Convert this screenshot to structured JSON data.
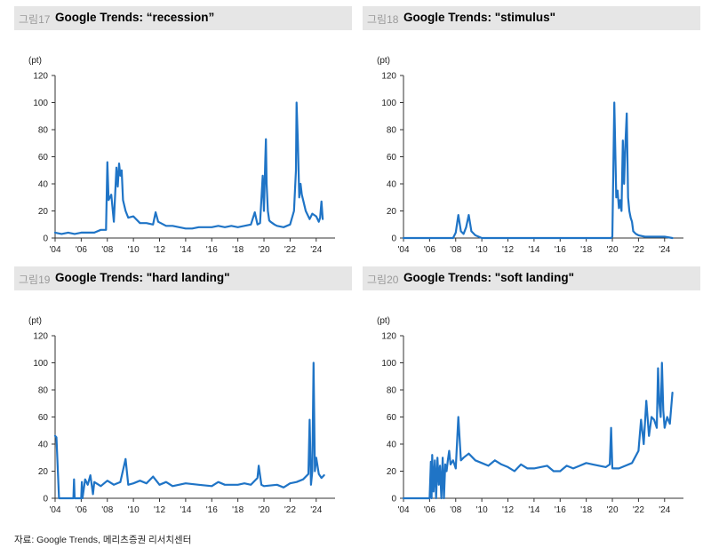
{
  "source": "자료: Google Trends, 메리츠증권 리서치센터",
  "chart_data": [
    {
      "type": "line",
      "fig_label": "그림17",
      "title": "Google Trends: “recession”",
      "ylabel": "(pt)",
      "ylim": [
        0,
        120
      ],
      "yticks": [
        "0",
        "20",
        "40",
        "60",
        "80",
        "100",
        "120"
      ],
      "xlim": [
        2004,
        2024.9
      ],
      "xticks": [
        "'04",
        "'06",
        "'08",
        "'10",
        "'12",
        "'14",
        "'16",
        "'18",
        "'20",
        "'22",
        "'24"
      ],
      "color": "#1f74c6",
      "x": [
        2004.0,
        2004.5,
        2005.0,
        2005.5,
        2006.0,
        2006.5,
        2007.0,
        2007.5,
        2007.9,
        2008.0,
        2008.1,
        2008.3,
        2008.5,
        2008.7,
        2008.8,
        2008.9,
        2009.0,
        2009.1,
        2009.2,
        2009.4,
        2009.6,
        2010.0,
        2010.5,
        2011.0,
        2011.5,
        2011.7,
        2011.9,
        2012.5,
        2013.0,
        2013.5,
        2014.0,
        2014.5,
        2015.0,
        2015.5,
        2016.0,
        2016.5,
        2017.0,
        2017.5,
        2018.0,
        2018.5,
        2019.0,
        2019.3,
        2019.5,
        2019.7,
        2019.9,
        2020.0,
        2020.1,
        2020.15,
        2020.2,
        2020.3,
        2020.4,
        2020.5,
        2020.8,
        2021.0,
        2021.5,
        2022.0,
        2022.3,
        2022.45,
        2022.5,
        2022.6,
        2022.7,
        2022.8,
        2022.9,
        2023.0,
        2023.2,
        2023.5,
        2023.7,
        2024.0,
        2024.2,
        2024.3,
        2024.4,
        2024.5
      ],
      "values": [
        4,
        3,
        4,
        3,
        4,
        4,
        4,
        6,
        6,
        56,
        28,
        32,
        12,
        52,
        38,
        55,
        46,
        50,
        28,
        20,
        15,
        16,
        11,
        11,
        10,
        19,
        12,
        9,
        9,
        8,
        7,
        7,
        8,
        8,
        8,
        9,
        8,
        9,
        8,
        9,
        10,
        19,
        10,
        11,
        46,
        20,
        58,
        73,
        40,
        20,
        13,
        12,
        10,
        9,
        8,
        10,
        20,
        50,
        100,
        70,
        30,
        40,
        32,
        28,
        20,
        14,
        18,
        16,
        12,
        15,
        27,
        14
      ]
    },
    {
      "type": "line",
      "fig_label": "그림18",
      "title": "Google Trends: \"stimulus\"",
      "ylabel": "(pt)",
      "ylim": [
        0,
        120
      ],
      "yticks": [
        "0",
        "20",
        "40",
        "60",
        "80",
        "100",
        "120"
      ],
      "xlim": [
        2004,
        2024.9
      ],
      "xticks": [
        "'04",
        "'06",
        "'08",
        "'10",
        "'12",
        "'14",
        "'16",
        "'18",
        "'20",
        "'22",
        "'24"
      ],
      "color": "#1f74c6",
      "x": [
        2004.0,
        2007.8,
        2008.0,
        2008.2,
        2008.4,
        2008.6,
        2008.8,
        2009.0,
        2009.2,
        2009.5,
        2010.0,
        2012.0,
        2014.0,
        2016.0,
        2018.0,
        2019.9,
        2020.0,
        2020.15,
        2020.3,
        2020.4,
        2020.5,
        2020.6,
        2020.7,
        2020.8,
        2020.9,
        2021.0,
        2021.1,
        2021.2,
        2021.3,
        2021.4,
        2021.5,
        2021.6,
        2021.8,
        2022.0,
        2022.5,
        2023.0,
        2024.0,
        2024.6
      ],
      "values": [
        0,
        0,
        4,
        17,
        5,
        3,
        8,
        17,
        5,
        2,
        0,
        0,
        0,
        0,
        0,
        0,
        1,
        100,
        30,
        35,
        22,
        28,
        20,
        72,
        40,
        70,
        92,
        30,
        20,
        15,
        12,
        5,
        3,
        2,
        1,
        1,
        1,
        0
      ]
    },
    {
      "type": "line",
      "fig_label": "그림19",
      "title": "Google Trends: \"hard landing\"",
      "ylabel": "(pt)",
      "ylim": [
        0,
        120
      ],
      "yticks": [
        "0",
        "20",
        "40",
        "60",
        "80",
        "100",
        "120"
      ],
      "xlim": [
        2004,
        2024.9
      ],
      "xticks": [
        "'04",
        "'06",
        "'08",
        "'10",
        "'12",
        "'14",
        "'16",
        "'18",
        "'20",
        "'22",
        "'24"
      ],
      "color": "#1f74c6",
      "x": [
        2004.0,
        2004.1,
        2004.3,
        2005.0,
        2005.4,
        2005.45,
        2005.5,
        2006.0,
        2006.05,
        2006.1,
        2006.3,
        2006.5,
        2006.7,
        2006.9,
        2007.0,
        2007.5,
        2008.0,
        2008.5,
        2009.0,
        2009.4,
        2009.6,
        2010.0,
        2010.5,
        2011.0,
        2011.5,
        2012.0,
        2012.5,
        2013.0,
        2014.0,
        2015.0,
        2016.0,
        2016.5,
        2017.0,
        2018.0,
        2018.5,
        2019.0,
        2019.5,
        2019.6,
        2019.8,
        2020.0,
        2021.0,
        2021.5,
        2022.0,
        2022.5,
        2023.0,
        2023.4,
        2023.5,
        2023.6,
        2023.7,
        2023.8,
        2023.9,
        2024.0,
        2024.2,
        2024.4,
        2024.6
      ],
      "values": [
        46,
        45,
        0,
        0,
        0,
        14,
        0,
        0,
        12,
        0,
        14,
        10,
        17,
        3,
        12,
        9,
        13,
        10,
        12,
        29,
        10,
        11,
        13,
        11,
        16,
        10,
        12,
        9,
        11,
        10,
        9,
        12,
        10,
        10,
        11,
        10,
        15,
        24,
        10,
        9,
        10,
        8,
        11,
        12,
        14,
        18,
        58,
        10,
        20,
        100,
        20,
        30,
        18,
        15,
        17
      ]
    },
    {
      "type": "line",
      "fig_label": "그림20",
      "title": "Google Trends: \"soft landing\"",
      "ylabel": "(pt)",
      "ylim": [
        0,
        120
      ],
      "yticks": [
        "0",
        "20",
        "40",
        "60",
        "80",
        "100",
        "120"
      ],
      "xlim": [
        2004,
        2024.9
      ],
      "xticks": [
        "'04",
        "'06",
        "'08",
        "'10",
        "'12",
        "'14",
        "'16",
        "'18",
        "'20",
        "'22",
        "'24"
      ],
      "color": "#1f74c6",
      "x": [
        2004.0,
        2006.0,
        2006.1,
        2006.15,
        2006.2,
        2006.3,
        2006.4,
        2006.5,
        2006.6,
        2006.7,
        2006.8,
        2006.9,
        2007.0,
        2007.1,
        2007.2,
        2007.3,
        2007.4,
        2007.5,
        2007.6,
        2007.8,
        2008.0,
        2008.2,
        2008.4,
        2008.6,
        2009.0,
        2009.5,
        2010.0,
        2010.5,
        2011.0,
        2011.5,
        2012.0,
        2012.5,
        2013.0,
        2013.5,
        2014.0,
        2014.5,
        2015.0,
        2015.5,
        2016.0,
        2016.5,
        2017.0,
        2017.5,
        2018.0,
        2018.5,
        2019.0,
        2019.5,
        2019.8,
        2019.9,
        2020.0,
        2020.5,
        2021.0,
        2021.5,
        2022.0,
        2022.2,
        2022.4,
        2022.6,
        2022.8,
        2023.0,
        2023.2,
        2023.4,
        2023.5,
        2023.6,
        2023.7,
        2023.8,
        2023.9,
        2024.0,
        2024.2,
        2024.4,
        2024.6
      ],
      "values": [
        0,
        0,
        27,
        0,
        32,
        5,
        28,
        0,
        30,
        10,
        24,
        0,
        30,
        0,
        25,
        20,
        28,
        35,
        25,
        28,
        22,
        60,
        28,
        30,
        33,
        28,
        26,
        24,
        28,
        25,
        23,
        20,
        25,
        22,
        22,
        23,
        24,
        20,
        20,
        24,
        22,
        24,
        26,
        25,
        24,
        23,
        25,
        52,
        22,
        22,
        24,
        26,
        35,
        58,
        40,
        72,
        46,
        60,
        58,
        52,
        96,
        70,
        60,
        100,
        65,
        52,
        60,
        55,
        78
      ]
    }
  ]
}
